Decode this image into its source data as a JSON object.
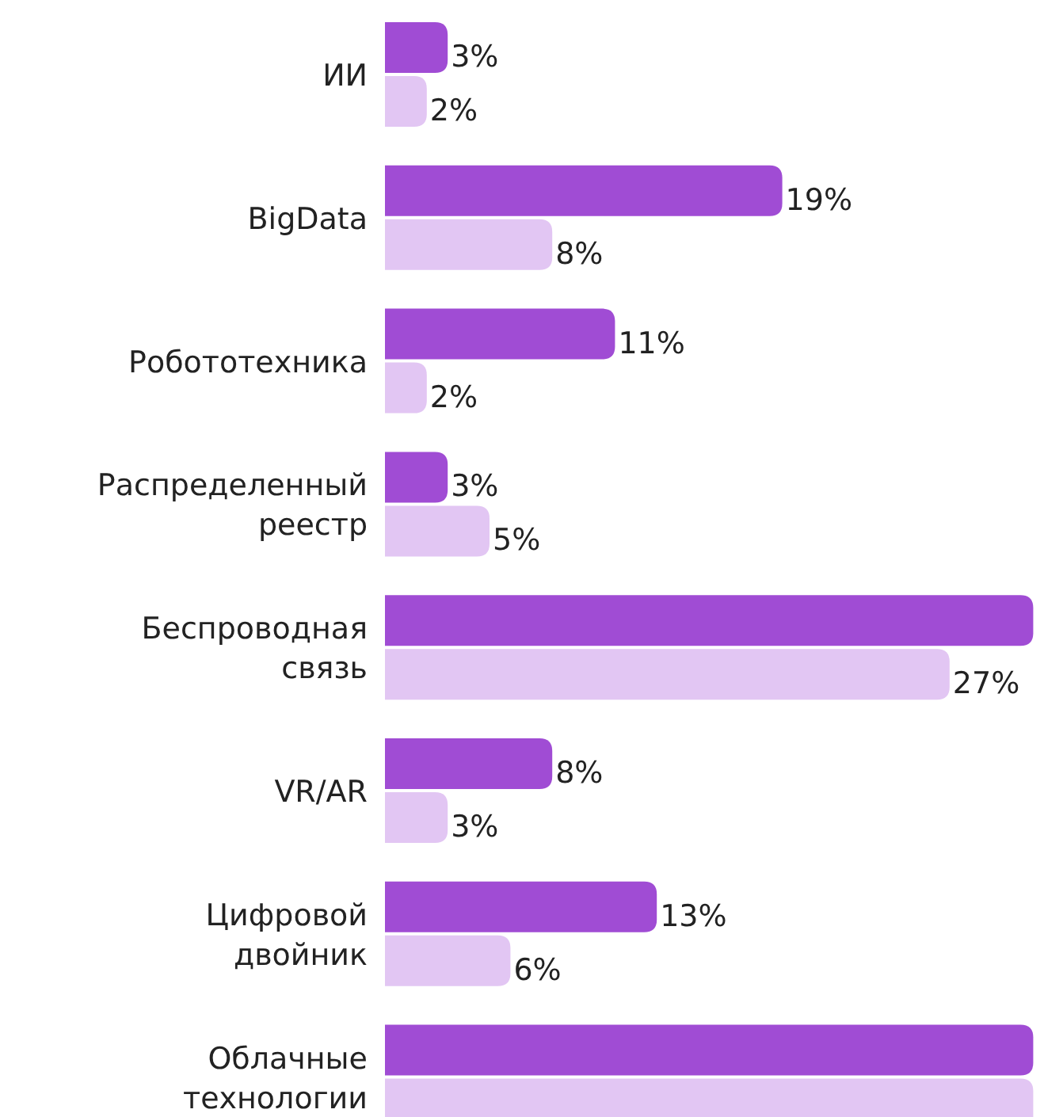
{
  "chart_data": {
    "type": "bar",
    "orientation": "horizontal",
    "categories": [
      "ИИ",
      "BigData",
      "Робототехника",
      "Распределенный реестр",
      "Беспроводная связь",
      "VR/AR",
      "Цифровой двойник",
      "Облачные технологии"
    ],
    "series": [
      {
        "color": "#a04cd4",
        "values": [
          3,
          19,
          11,
          3,
          31,
          8,
          13,
          31
        ],
        "value_labels": [
          "3%",
          "19%",
          "11%",
          "3%",
          null,
          "8%",
          "13%",
          null
        ]
      },
      {
        "color": "#e2c6f3",
        "values": [
          2,
          8,
          2,
          5,
          27,
          3,
          6,
          31
        ],
        "value_labels": [
          "2%",
          "8%",
          "2%",
          "5%",
          "27%",
          "3%",
          "6%",
          null
        ]
      }
    ],
    "tick_labels": "y"
  }
}
